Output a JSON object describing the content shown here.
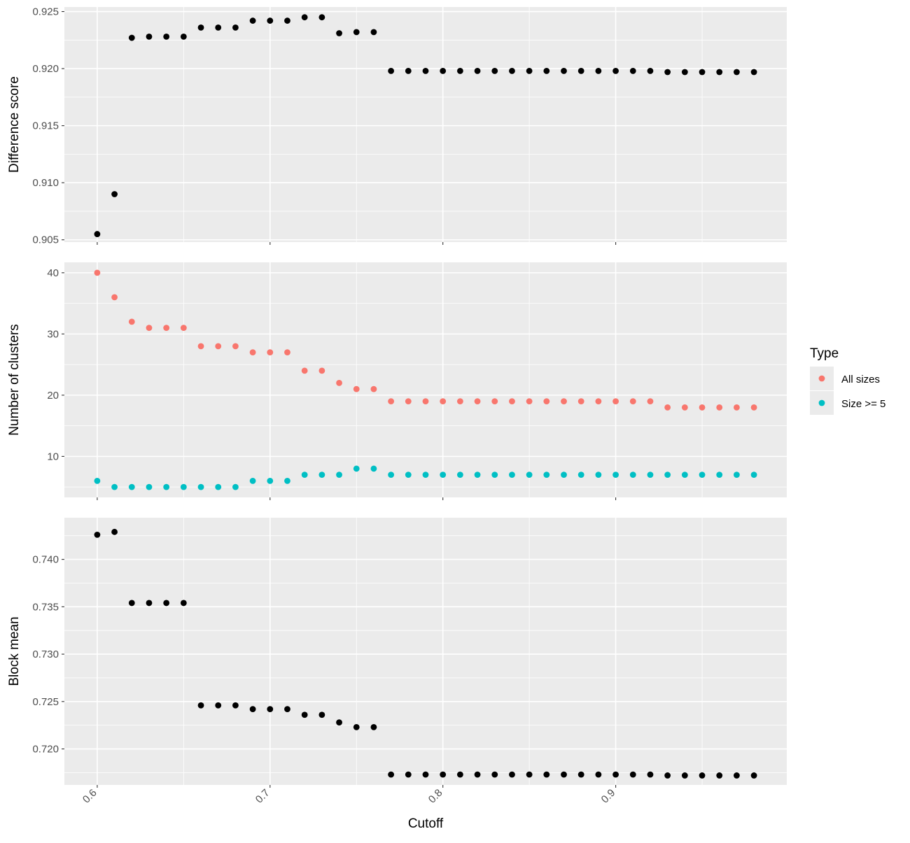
{
  "chart_data": [
    {
      "type": "scatter",
      "ylabel": "Difference score",
      "xlabel": "",
      "xlim": [
        0.581,
        0.999
      ],
      "ylim": [
        0.9048,
        0.9254
      ],
      "yticks": [
        0.905,
        0.91,
        0.915,
        0.92,
        0.925
      ],
      "ytick_labels": [
        "0.905",
        "0.910",
        "0.915",
        "0.920",
        "0.925"
      ],
      "x_tick_labels_visible": false,
      "grid": true,
      "color": "#000000",
      "x": [
        0.6,
        0.61,
        0.62,
        0.63,
        0.64,
        0.65,
        0.66,
        0.67,
        0.68,
        0.69,
        0.7,
        0.71,
        0.72,
        0.73,
        0.74,
        0.75,
        0.76,
        0.77,
        0.78,
        0.79,
        0.8,
        0.81,
        0.82,
        0.83,
        0.84,
        0.85,
        0.86,
        0.87,
        0.88,
        0.89,
        0.9,
        0.91,
        0.92,
        0.93,
        0.94,
        0.95,
        0.96,
        0.97,
        0.98
      ],
      "y": [
        0.9055,
        0.909,
        0.9227,
        0.9228,
        0.9228,
        0.9228,
        0.9236,
        0.9236,
        0.9236,
        0.9242,
        0.9242,
        0.9242,
        0.9245,
        0.9245,
        0.9231,
        0.9232,
        0.9232,
        0.9198,
        0.9198,
        0.9198,
        0.9198,
        0.9198,
        0.9198,
        0.9198,
        0.9198,
        0.9198,
        0.9198,
        0.9198,
        0.9198,
        0.9198,
        0.9198,
        0.9198,
        0.9198,
        0.9197,
        0.9197,
        0.9197,
        0.9197,
        0.9197,
        0.9197
      ]
    },
    {
      "type": "scatter",
      "ylabel": "Number of clusters",
      "xlabel": "",
      "xlim": [
        0.581,
        0.999
      ],
      "ylim": [
        3.3,
        41.7
      ],
      "yticks": [
        10,
        20,
        30,
        40
      ],
      "ytick_labels": [
        "10",
        "20",
        "30",
        "40"
      ],
      "x_tick_labels_visible": false,
      "grid": true,
      "legend": {
        "title": "Type",
        "position": "right",
        "entries": [
          "All sizes",
          "Size >= 5"
        ]
      },
      "series": [
        {
          "name": "All sizes",
          "color": "#F8766D",
          "x": [
            0.6,
            0.61,
            0.62,
            0.63,
            0.64,
            0.65,
            0.66,
            0.67,
            0.68,
            0.69,
            0.7,
            0.71,
            0.72,
            0.73,
            0.74,
            0.75,
            0.76,
            0.77,
            0.78,
            0.79,
            0.8,
            0.81,
            0.82,
            0.83,
            0.84,
            0.85,
            0.86,
            0.87,
            0.88,
            0.89,
            0.9,
            0.91,
            0.92,
            0.93,
            0.94,
            0.95,
            0.96,
            0.97,
            0.98
          ],
          "y": [
            40,
            36,
            32,
            31,
            31,
            31,
            28,
            28,
            28,
            27,
            27,
            27,
            24,
            24,
            22,
            21,
            21,
            19,
            19,
            19,
            19,
            19,
            19,
            19,
            19,
            19,
            19,
            19,
            19,
            19,
            19,
            19,
            19,
            18,
            18,
            18,
            18,
            18,
            18
          ]
        },
        {
          "name": "Size >= 5",
          "color": "#00BFC4",
          "x": [
            0.6,
            0.61,
            0.62,
            0.63,
            0.64,
            0.65,
            0.66,
            0.67,
            0.68,
            0.69,
            0.7,
            0.71,
            0.72,
            0.73,
            0.74,
            0.75,
            0.76,
            0.77,
            0.78,
            0.79,
            0.8,
            0.81,
            0.82,
            0.83,
            0.84,
            0.85,
            0.86,
            0.87,
            0.88,
            0.89,
            0.9,
            0.91,
            0.92,
            0.93,
            0.94,
            0.95,
            0.96,
            0.97,
            0.98
          ],
          "y": [
            6,
            5,
            5,
            5,
            5,
            5,
            5,
            5,
            5,
            6,
            6,
            6,
            7,
            7,
            7,
            8,
            8,
            7,
            7,
            7,
            7,
            7,
            7,
            7,
            7,
            7,
            7,
            7,
            7,
            7,
            7,
            7,
            7,
            7,
            7,
            7,
            7,
            7,
            7
          ]
        }
      ]
    },
    {
      "type": "scatter",
      "ylabel": "Block mean",
      "xlabel": "Cutoff",
      "xlim": [
        0.581,
        0.999
      ],
      "ylim": [
        0.7162,
        0.7444
      ],
      "yticks": [
        0.72,
        0.725,
        0.73,
        0.735,
        0.74
      ],
      "ytick_labels": [
        "0.720",
        "0.725",
        "0.730",
        "0.735",
        "0.740"
      ],
      "xticks": [
        0.6,
        0.7,
        0.8,
        0.9
      ],
      "xtick_labels": [
        "0.6",
        "0.7",
        "0.8",
        "0.9"
      ],
      "x_tick_labels_visible": true,
      "grid": true,
      "color": "#000000",
      "x": [
        0.6,
        0.61,
        0.62,
        0.63,
        0.64,
        0.65,
        0.66,
        0.67,
        0.68,
        0.69,
        0.7,
        0.71,
        0.72,
        0.73,
        0.74,
        0.75,
        0.76,
        0.77,
        0.78,
        0.79,
        0.8,
        0.81,
        0.82,
        0.83,
        0.84,
        0.85,
        0.86,
        0.87,
        0.88,
        0.89,
        0.9,
        0.91,
        0.92,
        0.93,
        0.94,
        0.95,
        0.96,
        0.97,
        0.98
      ],
      "y": [
        0.7426,
        0.7429,
        0.7354,
        0.7354,
        0.7354,
        0.7354,
        0.7246,
        0.7246,
        0.7246,
        0.7242,
        0.7242,
        0.7242,
        0.7236,
        0.7236,
        0.7228,
        0.7223,
        0.7223,
        0.7173,
        0.7173,
        0.7173,
        0.7173,
        0.7173,
        0.7173,
        0.7173,
        0.7173,
        0.7173,
        0.7173,
        0.7173,
        0.7173,
        0.7173,
        0.7173,
        0.7173,
        0.7173,
        0.7172,
        0.7172,
        0.7172,
        0.7172,
        0.7172,
        0.7172
      ]
    }
  ]
}
